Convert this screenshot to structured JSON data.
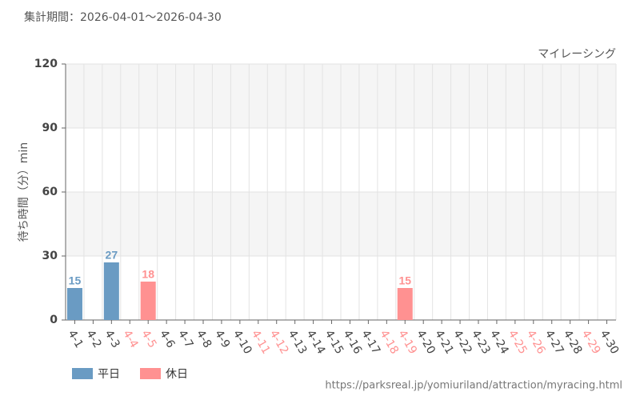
{
  "chart_data": {
    "type": "bar",
    "title": "集計期間：2026-04-01～2026-04-30",
    "subtitle": "マイレーシング",
    "y_label": "待ち時間（分）min",
    "source": "https://parksreal.jp/yomiuriland/attraction/myracing.html",
    "categories": [
      "4-1",
      "4-2",
      "4-3",
      "4-4",
      "4-5",
      "4-6",
      "4-7",
      "4-8",
      "4-9",
      "4-10",
      "4-11",
      "4-12",
      "4-13",
      "4-14",
      "4-15",
      "4-16",
      "4-17",
      "4-18",
      "4-19",
      "4-20",
      "4-21",
      "4-22",
      "4-23",
      "4-24",
      "4-25",
      "4-26",
      "4-27",
      "4-28",
      "4-29",
      "4-30"
    ],
    "series": [
      {
        "name": "平日",
        "color": "#6a9bc3",
        "values": [
          15,
          0,
          27,
          null,
          null,
          0,
          0,
          0,
          0,
          0,
          null,
          null,
          0,
          0,
          0,
          0,
          0,
          null,
          null,
          0,
          0,
          0,
          0,
          0,
          null,
          null,
          0,
          0,
          null,
          0
        ]
      },
      {
        "name": "休日",
        "color": "#ff9191",
        "values": [
          null,
          null,
          null,
          0,
          18,
          null,
          null,
          null,
          null,
          null,
          0,
          0,
          null,
          null,
          null,
          null,
          null,
          0,
          15,
          null,
          null,
          null,
          null,
          null,
          0,
          0,
          null,
          null,
          0,
          null
        ]
      }
    ],
    "ylim": [
      0,
      120
    ],
    "yticks": [
      0,
      30,
      60,
      90,
      120
    ],
    "grid": true
  }
}
